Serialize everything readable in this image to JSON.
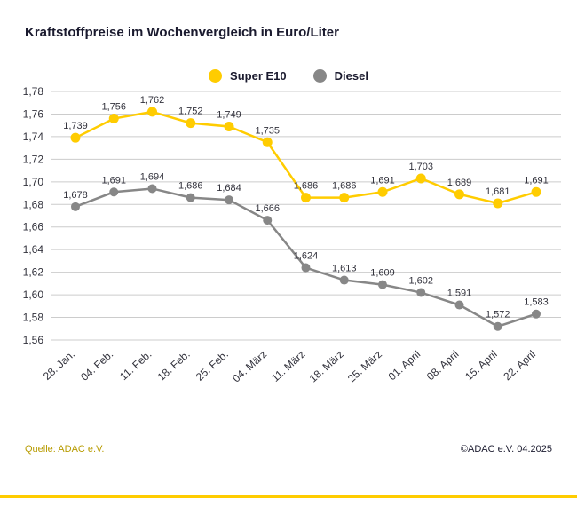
{
  "page": {
    "title": "Kraftstoffpreise im Wochenvergleich in Euro/Liter",
    "source": "Quelle: ADAC e.V.",
    "copyright": "©ADAC e.V. 04.2025"
  },
  "colors": {
    "super_e10": "#FFCC00",
    "diesel": "#878787",
    "grid": "#cccccc",
    "axis_text": "#32323c",
    "value_label_text": "#32323c",
    "title_text": "#1a1a2e",
    "source_text": "#b79b00",
    "accent_bar": "#FFCC00"
  },
  "chart_data": {
    "type": "line",
    "title": "Kraftstoffpreise im Wochenvergleich in Euro/Liter",
    "xlabel": "",
    "ylabel": "",
    "categories": [
      "28. Jan.",
      "04. Feb.",
      "11. Feb.",
      "18. Feb.",
      "25. Feb.",
      "04. März",
      "11. März",
      "18. März",
      "25. März",
      "01. April",
      "08. April",
      "15. April",
      "22. April"
    ],
    "series": [
      {
        "name": "Super E10",
        "color": "#FFCC00",
        "values": [
          1.739,
          1.756,
          1.762,
          1.752,
          1.749,
          1.735,
          1.686,
          1.686,
          1.691,
          1.703,
          1.689,
          1.681,
          1.691
        ]
      },
      {
        "name": "Diesel",
        "color": "#878787",
        "values": [
          1.678,
          1.691,
          1.694,
          1.686,
          1.684,
          1.666,
          1.624,
          1.613,
          1.609,
          1.602,
          1.591,
          1.572,
          1.583
        ]
      }
    ],
    "ylim": [
      1.56,
      1.78
    ],
    "ytick_step": 0.02,
    "grid": true,
    "legend_position": "top-center",
    "value_labels": true,
    "value_label_format": "de-comma-3dp",
    "ytick_format": "de-comma-2dp"
  }
}
